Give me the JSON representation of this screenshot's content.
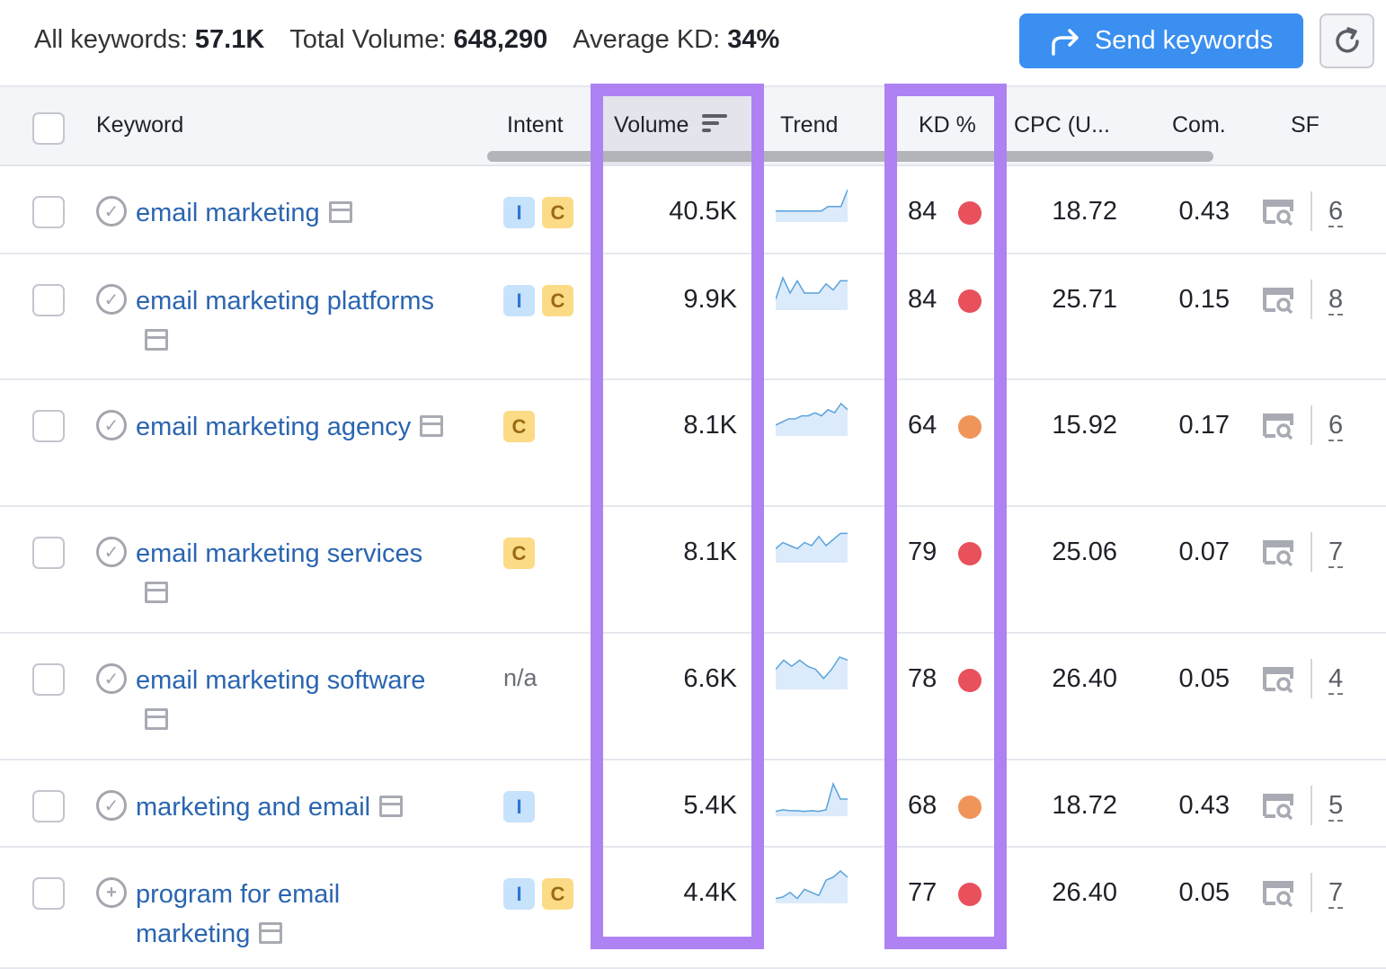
{
  "summary": {
    "all_keywords_label": "All keywords:",
    "all_keywords": "57.1K",
    "total_volume_label": "Total Volume:",
    "total_volume": "648,290",
    "avg_kd_label": "Average KD:",
    "avg_kd": "34%"
  },
  "toolbar": {
    "send_label": "Send keywords",
    "send_icon": "share-arrow-icon",
    "refresh_icon": "refresh-icon",
    "accent": "#3b8ff0"
  },
  "columns": {
    "keyword": "Keyword",
    "intent": "Intent",
    "volume": "Volume",
    "trend": "Trend",
    "kd": "KD %",
    "cpc": "CPC (U...",
    "com": "Com.",
    "sf": "SF"
  },
  "highlight_color": "#ae82f2",
  "kd_colors": {
    "hard": "#e8505b",
    "medium": "#f0955a"
  },
  "rows": [
    {
      "keyword": "email marketing",
      "status": "added",
      "intent": [
        "I",
        "C"
      ],
      "volume": "40.5K",
      "trend": [
        0.3,
        0.3,
        0.3,
        0.3,
        0.3,
        0.3,
        0.3,
        0.3,
        0.45,
        0.45,
        0.45,
        1
      ],
      "kd": "84",
      "kd_level": "hard",
      "cpc": "18.72",
      "com": "0.43",
      "sf": "6"
    },
    {
      "keyword": "email marketing platforms",
      "status": "added",
      "intent": [
        "I",
        "C"
      ],
      "volume": "9.9K",
      "trend": [
        0.3,
        1,
        0.5,
        0.9,
        0.5,
        0.5,
        0.5,
        0.8,
        0.6,
        0.9,
        0.9
      ],
      "kd": "84",
      "kd_level": "hard",
      "cpc": "25.71",
      "com": "0.15",
      "sf": "8"
    },
    {
      "keyword": "email marketing agency",
      "status": "added",
      "intent": [
        "C"
      ],
      "volume": "8.1K",
      "trend": [
        0.3,
        0.4,
        0.5,
        0.5,
        0.6,
        0.6,
        0.7,
        0.6,
        0.8,
        0.7,
        1,
        0.8
      ],
      "kd": "64",
      "kd_level": "medium",
      "cpc": "15.92",
      "com": "0.17",
      "sf": "6"
    },
    {
      "keyword": "email marketing services",
      "status": "added",
      "intent": [
        "C"
      ],
      "volume": "8.1K",
      "trend": [
        0.4,
        0.6,
        0.5,
        0.4,
        0.6,
        0.5,
        0.8,
        0.5,
        0.7,
        0.9,
        0.9
      ],
      "kd": "79",
      "kd_level": "hard",
      "cpc": "25.06",
      "com": "0.07",
      "sf": "7"
    },
    {
      "keyword": "email marketing software",
      "status": "added",
      "intent": [],
      "intent_na": "n/a",
      "volume": "6.6K",
      "trend": [
        0.6,
        0.9,
        0.7,
        0.9,
        0.7,
        0.6,
        0.3,
        0.6,
        1,
        0.9
      ],
      "kd": "78",
      "kd_level": "hard",
      "cpc": "26.40",
      "com": "0.05",
      "sf": "4"
    },
    {
      "keyword": "marketing and email",
      "status": "added",
      "intent": [
        "I"
      ],
      "volume": "5.4K",
      "trend": [
        0.1,
        0.15,
        0.12,
        0.12,
        0.1,
        0.12,
        0.1,
        0.15,
        1,
        0.5,
        0.5
      ],
      "kd": "68",
      "kd_level": "medium",
      "cpc": "18.72",
      "com": "0.43",
      "sf": "5"
    },
    {
      "keyword": "program for email marketing",
      "status": "add",
      "intent": [
        "I",
        "C"
      ],
      "volume": "4.4K",
      "trend": [
        0.1,
        0.15,
        0.3,
        0.1,
        0.4,
        0.3,
        0.2,
        0.7,
        0.8,
        1,
        0.8
      ],
      "kd": "77",
      "kd_level": "hard",
      "cpc": "26.40",
      "com": "0.05",
      "sf": "7"
    }
  ]
}
